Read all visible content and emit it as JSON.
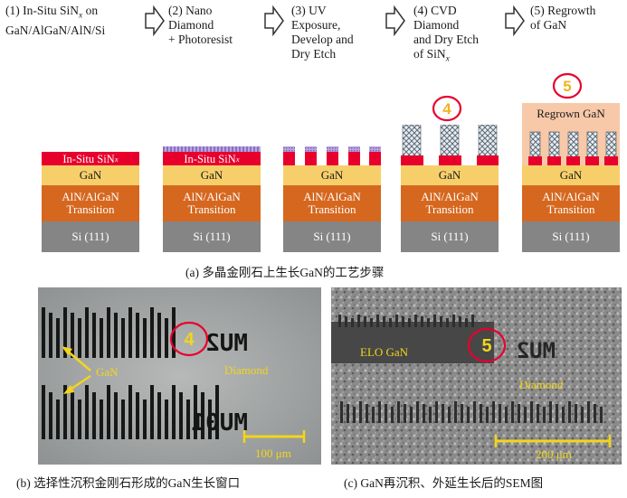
{
  "steps": [
    {
      "lines": [
        "(1) In-Situ SiNx on",
        "GaN/AlGaN/AlN/Si"
      ]
    },
    {
      "lines": [
        "(2) Nano",
        "Diamond",
        "+ Photoresist"
      ]
    },
    {
      "lines": [
        "(3) UV",
        "Exposure,",
        "Develop and",
        "Dry Etch"
      ]
    },
    {
      "lines": [
        "(4) CVD",
        "Diamond",
        "and Dry Etch",
        "of SiNx"
      ]
    },
    {
      "lines": [
        "(5) Regrowth",
        "of GaN"
      ]
    }
  ],
  "layers": {
    "sin": "In-Situ SiNx",
    "gan": "GaN",
    "transition_1": "AlN/AlGaN",
    "transition_2": "Transition",
    "si": "Si (111)",
    "regrown": "Regrown GaN"
  },
  "markers": {
    "step4": "4",
    "step5": "5"
  },
  "captions": {
    "a": "(a) 多晶金刚石上生长GaN的工艺步骤",
    "b": "(b) 选择性沉积金刚石形成的GaN生长窗口",
    "c": "(c) GaN再沉积、外延生长后的SEM图"
  },
  "sem_b": {
    "gan": "GaN",
    "diamond": "Diamond",
    "marker": "4",
    "text_top": "MU2",
    "text_bottom": "MU01",
    "scale": "100 μm"
  },
  "sem_c": {
    "elo": "ELO GaN",
    "diamond": "Diamond",
    "marker": "5",
    "text_top": "MU2",
    "scale": "200 μm"
  },
  "colors": {
    "sin": "#e8002d",
    "gan": "#f7cf6a",
    "transition": "#d6671f",
    "si": "#858585",
    "regrown": "#f7c9a8",
    "marker": "#e8002d",
    "label": "#f2d51c"
  }
}
